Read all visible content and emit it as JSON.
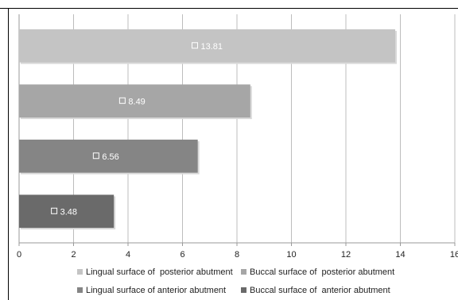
{
  "chart_data": {
    "type": "bar",
    "orientation": "horizontal",
    "series": [
      {
        "name": "Lingual surface of  posterior abutment",
        "value": 13.81,
        "label": "13.81",
        "color": "#c4c4c4"
      },
      {
        "name": "Buccal surface of  posterior abutment",
        "value": 8.49,
        "label": "8.49",
        "color": "#a6a6a6"
      },
      {
        "name": "Lingual surface of anterior abutment",
        "value": 6.56,
        "label": "6.56",
        "color": "#858585"
      },
      {
        "name": "Buccal surface of  anterior abutment",
        "value": 3.48,
        "label": "3.48",
        "color": "#6a6a6a"
      }
    ],
    "x_ticks": [
      "0",
      "2",
      "4",
      "6",
      "8",
      "10",
      "12",
      "14",
      "16"
    ],
    "xlim": [
      0,
      16
    ],
    "grid": true,
    "legend_position": "bottom",
    "title": "",
    "xlabel": "",
    "ylabel": ""
  }
}
